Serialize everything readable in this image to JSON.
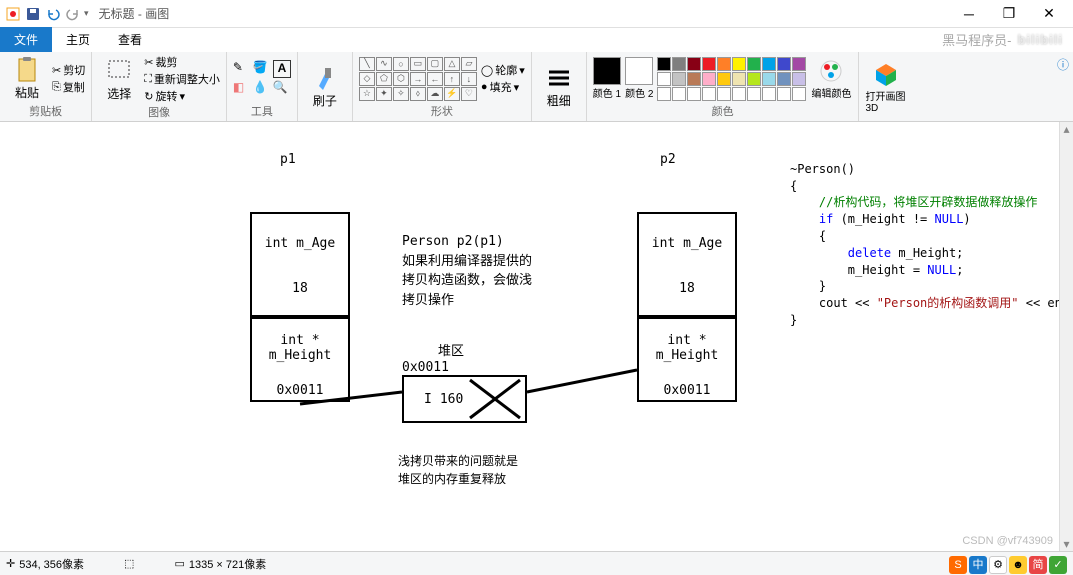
{
  "window": {
    "title": "无标题 - 画图",
    "tabs": {
      "file": "文件",
      "home": "主页",
      "view": "查看"
    }
  },
  "ribbon": {
    "clipboard": {
      "paste": "粘贴",
      "cut": "剪切",
      "copy": "复制",
      "label": "剪贴板"
    },
    "image": {
      "select": "选择",
      "crop": "裁剪",
      "resize": "重新调整大小",
      "rotate": "旋转",
      "label": "图像"
    },
    "tools": {
      "label": "工具"
    },
    "brushes": {
      "brush": "刷子",
      "label": ""
    },
    "shapes": {
      "outline": "轮廓",
      "fill": "填充",
      "label": "形状"
    },
    "thickness": {
      "thick": "粗细",
      "label": ""
    },
    "colors": {
      "color1": "颜色 1",
      "color2": "颜色 2",
      "edit": "编辑颜色",
      "label": "颜色"
    },
    "paint3d": {
      "open": "打开画图 3D"
    }
  },
  "palette": {
    "fg": "#000000",
    "bg": "#ffffff",
    "row1": [
      "#000000",
      "#7f7f7f",
      "#880015",
      "#ed1c24",
      "#ff7f27",
      "#fff200",
      "#22b14c",
      "#00a2e8",
      "#3f48cc",
      "#a349a4"
    ],
    "row2": [
      "#ffffff",
      "#c3c3c3",
      "#b97a57",
      "#ffaec9",
      "#ffc90e",
      "#efe4b0",
      "#b5e61d",
      "#99d9ea",
      "#7092be",
      "#c8bfe7"
    ],
    "row3": [
      "#ffffff",
      "#ffffff",
      "#ffffff",
      "#ffffff",
      "#ffffff",
      "#ffffff",
      "#ffffff",
      "#ffffff",
      "#ffffff",
      "#ffffff"
    ]
  },
  "diagram": {
    "p1": "p1",
    "p2": "p2",
    "age_label": "int  m_Age",
    "age_val": "18",
    "height_label": "int * m_Height",
    "addr": "0x0011",
    "heap_label": "堆区",
    "heap_addr": "0x0011",
    "heap_val": "160",
    "copy_text_l1": "Person p2(p1)",
    "copy_text_l2": "如果利用编译器提供的",
    "copy_text_l3": "拷贝构造函数，会做浅",
    "copy_text_l4": "拷贝操作",
    "problem_l1": "浅拷贝带来的问题就是",
    "problem_l2": "堆区的内存重复释放"
  },
  "code": {
    "l1": "~Person()",
    "l2": "{",
    "l3": "//析构代码，将堆区开辟数据做释放操作",
    "l4_a": "if",
    "l4_b": " (m_Height != ",
    "l4_c": "NULL",
    "l4_d": ")",
    "l5": "{",
    "l6_a": "delete",
    "l6_b": " m_Height;",
    "l7_a": "m_Height = ",
    "l7_b": "NULL",
    "l7_c": ";",
    "l8": "}",
    "l9_a": "cout << ",
    "l9_b": "\"Person的析构函数调用\"",
    "l9_c": " << endl;",
    "l10": "}"
  },
  "status": {
    "pos": "534, 356像素",
    "size": "1335 × 721像素"
  },
  "watermark": {
    "text": "黑马程序员-"
  },
  "csdn": "CSDN @vf743909",
  "colors": {
    "accent": "#1979ca",
    "ribbon_bg": "#f5f6f7"
  }
}
